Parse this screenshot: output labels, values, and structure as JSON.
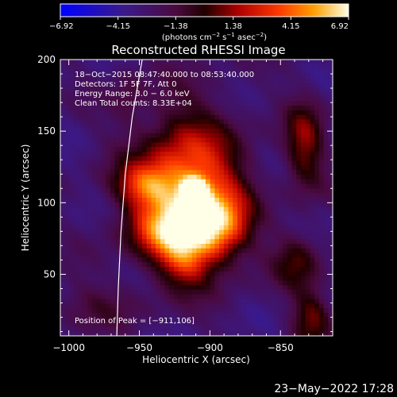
{
  "chart_data": {
    "type": "heatmap",
    "title": "Reconstructed RHESSI Image",
    "xlabel": "Heliocentric X (arcsec)",
    "ylabel": "Heliocentric Y (arcsec)",
    "xlim": [
      -1006,
      -813
    ],
    "ylim": [
      7,
      200
    ],
    "x_ticks": [
      -1000,
      -950,
      -900,
      -850
    ],
    "x_tick_labels": [
      "−1000",
      "−950",
      "−900",
      "−850"
    ],
    "y_ticks": [
      50,
      100,
      150,
      200
    ],
    "y_tick_labels": [
      "50",
      "100",
      "150",
      "200"
    ],
    "colorbar": {
      "range": [
        -6.92,
        6.92
      ],
      "ticks": [
        -6.92,
        -4.15,
        -1.38,
        1.38,
        4.15,
        6.92
      ],
      "tick_labels": [
        "−6.92",
        "−4.15",
        "−1.38",
        "1.38",
        "4.15",
        "6.92"
      ],
      "unit_parts": [
        "(photons cm",
        "−2",
        " s",
        "−1",
        " asec",
        "−2",
        ")"
      ]
    },
    "annotations": [
      "18−Oct−2015 08:47:40.000 to 08:53:40.000",
      "Detectors: 1F 5F 7F, Att 0",
      "Energy Range: 3.0 − 6.0 keV",
      "Clean     Total counts: 8.33E+04"
    ],
    "peak_label": "Position of Peak = [−911,106]",
    "peak": [
      -911,
      106
    ],
    "limb_curve": [
      [
        -948,
        200
      ],
      [
        -955,
        160
      ],
      [
        -960,
        120
      ],
      [
        -963,
        80
      ],
      [
        -965,
        40
      ],
      [
        -966,
        7
      ]
    ],
    "sources": [
      {
        "x": -911,
        "y": 106,
        "sx": 6,
        "sy": 7,
        "amp": 4.2
      },
      {
        "x": -916,
        "y": 110,
        "sx": 26,
        "sy": 36,
        "amp": 3.0
      },
      {
        "x": -923,
        "y": 80,
        "sx": 22,
        "sy": 14,
        "amp": 2.2
      },
      {
        "x": -893,
        "y": 86,
        "sx": 14,
        "sy": 18,
        "amp": 1.8
      },
      {
        "x": -945,
        "y": 112,
        "sx": 16,
        "sy": 10,
        "amp": 1.6
      },
      {
        "x": -918,
        "y": 58,
        "sx": 12,
        "sy": 12,
        "amp": 1.2
      },
      {
        "x": -833,
        "y": 140,
        "sx": 10,
        "sy": 22,
        "amp": 1.6
      },
      {
        "x": -838,
        "y": 60,
        "sx": 12,
        "sy": 14,
        "amp": 1.2
      },
      {
        "x": -828,
        "y": 20,
        "sx": 10,
        "sy": 14,
        "amp": 1.4
      },
      {
        "x": -985,
        "y": 28,
        "sx": 26,
        "sy": 12,
        "amp": 0.6
      },
      {
        "x": -958,
        "y": 176,
        "sx": 8,
        "sy": 14,
        "amp": 0.6
      }
    ],
    "background_level": -2.9
  },
  "footer_timestamp": "23−May−2022 17:28"
}
